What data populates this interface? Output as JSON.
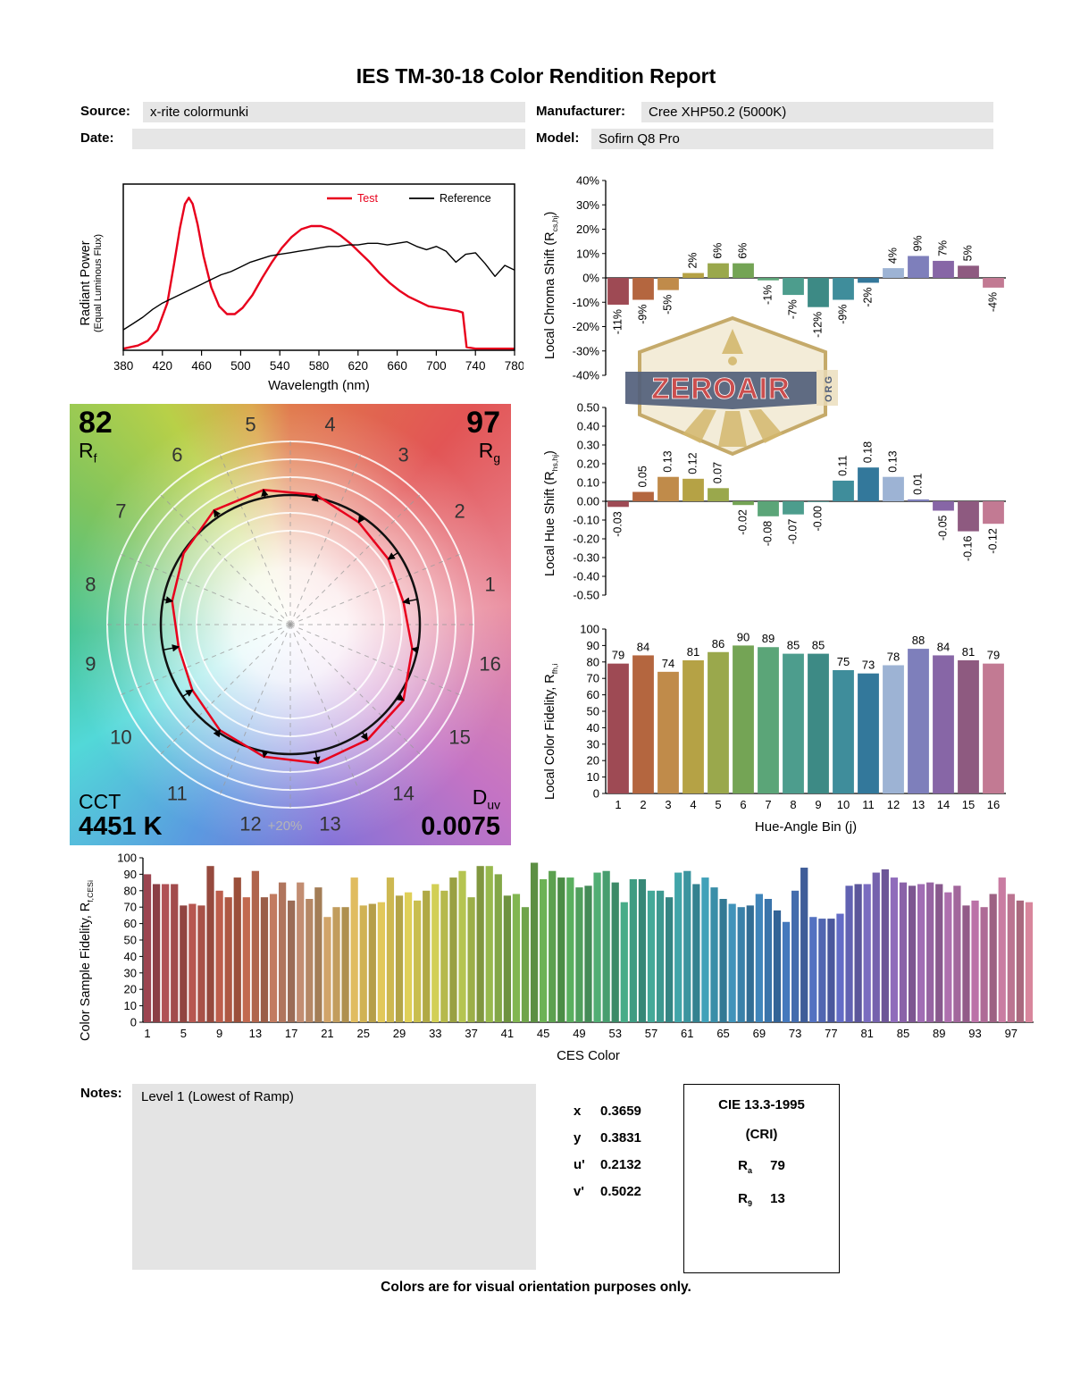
{
  "title": "IES TM-30-18 Color Rendition Report",
  "header": {
    "source_label": "Source:",
    "source_value": "x-rite colormunki",
    "manufacturer_label": "Manufacturer:",
    "manufacturer_value": "Cree XHP50.2 (5000K)",
    "date_label": "Date:",
    "date_value": "",
    "model_label": "Model:",
    "model_value": "Sofirn Q8 Pro"
  },
  "axis_labels": {
    "spd_line1": "Radiant Power",
    "spd_line2": "(Equal Luminous Flux)",
    "chroma": {
      "pre": "Local Chroma Shift (R",
      "sub": "cs,hj",
      "post": ")"
    },
    "hue": {
      "pre": "Local Hue Shift (R",
      "sub": "hs,hj",
      "post": ")"
    },
    "local_fid": {
      "pre": "Local Color Fidelity, R",
      "sub": "fh,i",
      "post": ""
    },
    "ces": {
      "pre": "Color Sample Fidelity, R",
      "sub": "f,CESi",
      "post": ""
    }
  },
  "vector": {
    "rf_value": "82",
    "rf_sym": "R",
    "rf_sub": "f",
    "rg_value": "97",
    "rg_sym": "R",
    "rg_sub": "g",
    "cct_label": "CCT",
    "cct_value": "4451 K",
    "duv_sym": "D",
    "duv_sub": "uv",
    "duv_value": "0.0075",
    "ring_label": "+20%",
    "bins": [
      1,
      2,
      3,
      4,
      5,
      6,
      7,
      8,
      9,
      10,
      11,
      12,
      13,
      14,
      15,
      16
    ]
  },
  "hue_bin_colors": [
    "#9e4a54",
    "#b4663f",
    "#c08b4a",
    "#b5a245",
    "#9aa84c",
    "#74a455",
    "#5ba578",
    "#4d9d8d",
    "#3d8a85",
    "#3f8d9b",
    "#33789b",
    "#9db3d4",
    "#7e7fbb",
    "#8766a6",
    "#8e5a80",
    "#c27a93"
  ],
  "chart_data": [
    {
      "type": "line",
      "name": "spectral-power-distribution",
      "xlabel": "Wavelength (nm)",
      "ylabel": "Radiant Power (Equal Luminous Flux)",
      "xlim": [
        380,
        780
      ],
      "xticks": [
        380,
        420,
        460,
        500,
        540,
        580,
        620,
        660,
        700,
        740,
        780
      ],
      "legend": [
        {
          "label": "Test",
          "color": "#e8001c"
        },
        {
          "label": "Reference",
          "color": "#000000"
        }
      ],
      "series": [
        {
          "name": "Test",
          "color": "#e8001c",
          "width": 2.4,
          "x": [
            380,
            395,
            405,
            415,
            425,
            432,
            438,
            443,
            447,
            451,
            456,
            462,
            470,
            478,
            486,
            494,
            502,
            512,
            522,
            532,
            542,
            552,
            562,
            572,
            582,
            592,
            602,
            612,
            622,
            632,
            642,
            652,
            662,
            672,
            682,
            692,
            702,
            712,
            722,
            727,
            731,
            740,
            780
          ],
          "y": [
            0.01,
            0.03,
            0.06,
            0.13,
            0.3,
            0.55,
            0.78,
            0.93,
            0.97,
            0.93,
            0.8,
            0.6,
            0.4,
            0.28,
            0.23,
            0.23,
            0.27,
            0.35,
            0.46,
            0.56,
            0.65,
            0.72,
            0.77,
            0.79,
            0.79,
            0.77,
            0.73,
            0.68,
            0.62,
            0.56,
            0.49,
            0.43,
            0.38,
            0.34,
            0.31,
            0.28,
            0.27,
            0.26,
            0.25,
            0.24,
            0.02,
            0.01,
            0.01
          ]
        },
        {
          "name": "Reference",
          "color": "#000000",
          "width": 1.4,
          "x": [
            380,
            390,
            400,
            410,
            420,
            430,
            440,
            450,
            460,
            470,
            480,
            490,
            500,
            510,
            520,
            530,
            540,
            550,
            560,
            570,
            580,
            590,
            600,
            610,
            620,
            630,
            640,
            650,
            660,
            670,
            680,
            690,
            700,
            710,
            720,
            730,
            740,
            750,
            760,
            770,
            780
          ],
          "y": [
            0.13,
            0.17,
            0.21,
            0.26,
            0.3,
            0.33,
            0.36,
            0.39,
            0.42,
            0.45,
            0.48,
            0.5,
            0.53,
            0.56,
            0.58,
            0.6,
            0.61,
            0.62,
            0.63,
            0.64,
            0.65,
            0.66,
            0.66,
            0.67,
            0.67,
            0.68,
            0.68,
            0.67,
            0.68,
            0.69,
            0.66,
            0.64,
            0.66,
            0.63,
            0.56,
            0.61,
            0.62,
            0.55,
            0.47,
            0.54,
            0.51
          ]
        }
      ]
    },
    {
      "type": "bar",
      "name": "local-chroma-shift",
      "ylabel": "Local Chroma Shift (Rcs,hj)",
      "categories": [
        1,
        2,
        3,
        4,
        5,
        6,
        7,
        8,
        9,
        10,
        11,
        12,
        13,
        14,
        15,
        16
      ],
      "values": [
        -11,
        -9,
        -5,
        2,
        6,
        6,
        -1,
        -7,
        -12,
        -9,
        -2,
        4,
        9,
        7,
        5,
        -4
      ],
      "labels": [
        "-11%",
        "-9%",
        "-5%",
        "2%",
        "6%",
        "6%",
        "-1%",
        "-7%",
        "-12%",
        "-9%",
        "-2%",
        "4%",
        "9%",
        "7%",
        "5%",
        "-4%"
      ],
      "ylim": [
        -40,
        40
      ],
      "yticks": [
        40,
        30,
        20,
        10,
        0,
        -10,
        -20,
        -30,
        -40
      ],
      "ytick_labels": [
        "40%",
        "30%",
        "20%",
        "10%",
        "0%",
        "-10%",
        "-20%",
        "-30%",
        "-40%"
      ]
    },
    {
      "type": "bar",
      "name": "local-hue-shift",
      "ylabel": "Local Hue Shift (Rhs,hj)",
      "categories": [
        1,
        2,
        3,
        4,
        5,
        6,
        7,
        8,
        9,
        10,
        11,
        12,
        13,
        14,
        15,
        16
      ],
      "values": [
        -0.03,
        0.05,
        0.13,
        0.12,
        0.07,
        -0.02,
        -0.08,
        -0.07,
        0,
        0.11,
        0.18,
        0.13,
        0.01,
        -0.05,
        -0.16,
        -0.12
      ],
      "labels": [
        "-0.03",
        "0.05",
        "0.13",
        "0.12",
        "0.07",
        "-0.02",
        "-0.08",
        "-0.07",
        "-0.00",
        "0.11",
        "0.18",
        "0.13",
        "0.01",
        "-0.05",
        "-0.16",
        "-0.12"
      ],
      "ylim": [
        -0.5,
        0.5
      ],
      "yticks": [
        0.5,
        0.4,
        0.3,
        0.2,
        0.1,
        0,
        -0.1,
        -0.2,
        -0.3,
        -0.4,
        -0.5
      ],
      "ytick_labels": [
        "0.50",
        "0.40",
        "0.30",
        "0.20",
        "0.10",
        "0.00",
        "-0.10",
        "-0.20",
        "-0.30",
        "-0.40",
        "-0.50"
      ]
    },
    {
      "type": "bar",
      "name": "local-color-fidelity",
      "ylabel": "Local Color Fidelity, Rfh,i",
      "xlabel": "Hue-Angle Bin (j)",
      "categories": [
        1,
        2,
        3,
        4,
        5,
        6,
        7,
        8,
        9,
        10,
        11,
        12,
        13,
        14,
        15,
        16
      ],
      "values": [
        79,
        84,
        74,
        81,
        86,
        90,
        89,
        85,
        85,
        75,
        73,
        78,
        88,
        84,
        81,
        79
      ],
      "ylim": [
        0,
        100
      ],
      "yticks": [
        100,
        90,
        80,
        70,
        60,
        50,
        40,
        30,
        20,
        10,
        0
      ],
      "ytick_labels": [
        "100",
        "90",
        "80",
        "70",
        "60",
        "50",
        "40",
        "30",
        "20",
        "10",
        "0"
      ]
    },
    {
      "type": "bar",
      "name": "color-sample-fidelity",
      "ylabel": "Color Sample Fidelity, Rf,CESi",
      "xlabel": "CES Color",
      "values": [
        90,
        84,
        84,
        84,
        71,
        72,
        71,
        95,
        80,
        76,
        88,
        76,
        92,
        76,
        78,
        85,
        74,
        85,
        75,
        82,
        64,
        70,
        70,
        88,
        71,
        72,
        73,
        88,
        77,
        79,
        74,
        80,
        84,
        80,
        88,
        92,
        76,
        95,
        95,
        90,
        77,
        78,
        70,
        97,
        87,
        92,
        88,
        88,
        82,
        83,
        91,
        92,
        85,
        73,
        87,
        87,
        80,
        80,
        76,
        91,
        92,
        84,
        88,
        82,
        75,
        72,
        70,
        71,
        78,
        75,
        68,
        61,
        80,
        94,
        64,
        63,
        63,
        66,
        83,
        84,
        84,
        91,
        93,
        88,
        85,
        83,
        84,
        85,
        84,
        79,
        83,
        71,
        74,
        70,
        78,
        88,
        78,
        74,
        73
      ],
      "ylim": [
        0,
        100
      ],
      "yticks": [
        100,
        90,
        80,
        70,
        60,
        50,
        40,
        30,
        20,
        10,
        0
      ],
      "ytick_labels": [
        "100",
        "90",
        "80",
        "70",
        "60",
        "50",
        "40",
        "30",
        "20",
        "10",
        "0"
      ],
      "xtick_labels": [
        1,
        5,
        9,
        13,
        17,
        21,
        25,
        29,
        33,
        37,
        41,
        45,
        49,
        53,
        57,
        61,
        65,
        69,
        73,
        77,
        81,
        85,
        89,
        93,
        97
      ],
      "palette_anchors": [
        {
          "pos": 0,
          "color": "#9c4550"
        },
        {
          "pos": 10,
          "color": "#b05a42"
        },
        {
          "pos": 17,
          "color": "#b08068"
        },
        {
          "pos": 24,
          "color": "#d0b254"
        },
        {
          "pos": 31,
          "color": "#c8c04e"
        },
        {
          "pos": 38,
          "color": "#8aa846"
        },
        {
          "pos": 46,
          "color": "#55a050"
        },
        {
          "pos": 54,
          "color": "#3f9c82"
        },
        {
          "pos": 62,
          "color": "#3a92a8"
        },
        {
          "pos": 70,
          "color": "#3a70aa"
        },
        {
          "pos": 77,
          "color": "#5a62b4"
        },
        {
          "pos": 84,
          "color": "#8a62a8"
        },
        {
          "pos": 92,
          "color": "#aa6898"
        },
        {
          "pos": 98,
          "color": "#c47a8e"
        }
      ]
    }
  ],
  "notes": {
    "label": "Notes:",
    "value": "Level 1 (Lowest of Ramp)"
  },
  "chromaticity": {
    "rows": [
      {
        "label": "x",
        "value": "0.3659"
      },
      {
        "label": "y",
        "value": "0.3831"
      },
      {
        "label": "u'",
        "value": "0.2132"
      },
      {
        "label": "v'",
        "value": "0.5022"
      }
    ]
  },
  "cri_box": {
    "title": "CIE 13.3-1995",
    "subtitle": "(CRI)",
    "ra_sym": "R",
    "ra_sub": "a",
    "ra_value": "79",
    "r9_sym": "R",
    "r9_sub": "9",
    "r9_value": "13"
  },
  "footer": "Colors are for visual orientation purposes only.",
  "watermark": {
    "text": "ZEROAIR",
    "org": "ORG"
  }
}
